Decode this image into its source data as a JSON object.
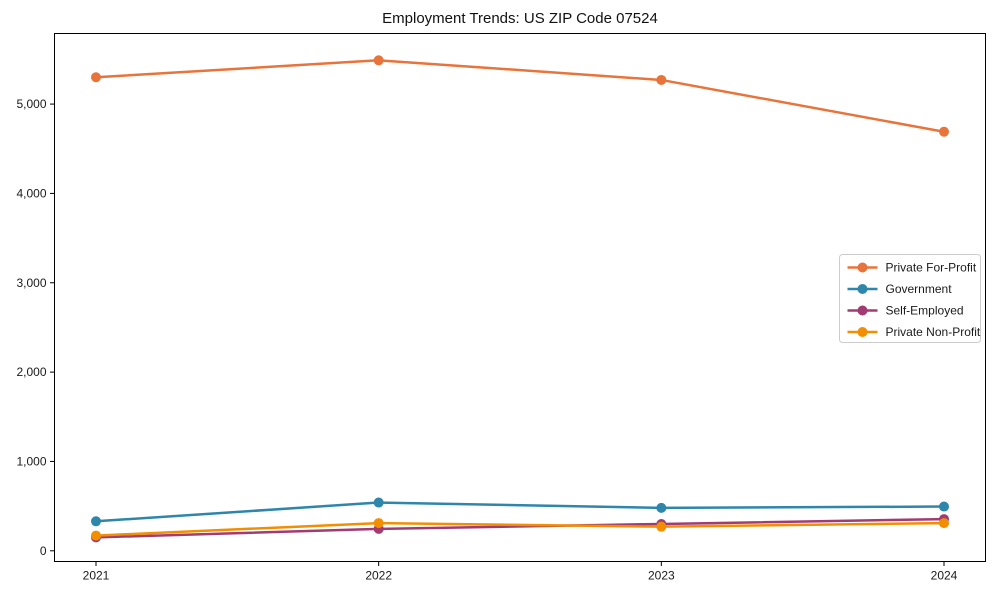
{
  "chart_data": {
    "type": "line",
    "title": "Employment Trends: US ZIP Code 07524",
    "x": [
      "2021",
      "2022",
      "2023",
      "2024"
    ],
    "series": [
      {
        "name": "Private For-Profit",
        "color": "#E8743B",
        "values": [
          5300,
          5490,
          5270,
          4690
        ]
      },
      {
        "name": "Government",
        "color": "#2E86AB",
        "values": [
          330,
          540,
          480,
          495
        ]
      },
      {
        "name": "Self-Employed",
        "color": "#A23B72",
        "values": [
          150,
          245,
          300,
          355
        ]
      },
      {
        "name": "Private Non-Profit",
        "color": "#F18F01",
        "values": [
          170,
          310,
          270,
          310
        ]
      }
    ],
    "xlabel": "",
    "ylabel": "",
    "yticks": [
      0,
      1000,
      2000,
      3000,
      4000,
      5000
    ],
    "ytick_labels": [
      "0",
      "1,000",
      "2,000",
      "3,000",
      "4,000",
      "5,000"
    ],
    "ylim": [
      -120,
      5790
    ],
    "grid": false,
    "legend_position": "center-right",
    "marker": "circle",
    "line_width": 2.5,
    "marker_radius": 5,
    "axis_color": "#000000",
    "legend_border_color": "#cccccc",
    "background_color": "#ffffff"
  }
}
